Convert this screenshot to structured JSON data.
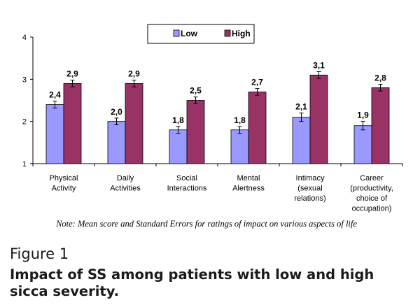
{
  "chart_data": {
    "type": "bar",
    "categories": [
      [
        "Physical",
        "Activity"
      ],
      [
        "Daily",
        "Activities"
      ],
      [
        "Social",
        "Interactions"
      ],
      [
        "Mental",
        "Alertness"
      ],
      [
        "Intimacy",
        "(sexual",
        "relations)"
      ],
      [
        "Career",
        "(productivity,",
        "choice of",
        "occupation)"
      ]
    ],
    "series": [
      {
        "name": "Low",
        "color": "#9999ff",
        "values": [
          2.4,
          2.0,
          1.8,
          1.8,
          2.1,
          1.9
        ],
        "errors": [
          0.08,
          0.08,
          0.08,
          0.08,
          0.1,
          0.1
        ],
        "labels": [
          "2,4",
          "2,0",
          "1,8",
          "1,8",
          "2,1",
          "1,9"
        ]
      },
      {
        "name": "High",
        "color": "#993366",
        "values": [
          2.9,
          2.9,
          2.5,
          2.7,
          3.1,
          2.8
        ],
        "errors": [
          0.08,
          0.08,
          0.08,
          0.08,
          0.08,
          0.08
        ],
        "labels": [
          "2,9",
          "2,9",
          "2,5",
          "2,7",
          "3,1",
          "2,8"
        ]
      }
    ],
    "ylim": [
      1,
      4
    ],
    "yticks": [
      1,
      2,
      3,
      4
    ],
    "legend_position": "top-center",
    "grid": false
  },
  "note": "Note: Mean score and Standard Errors for ratings of impact on various aspects of life",
  "figure_label": "Figure 1",
  "figure_title": "Impact of SS among patients with low and high sicca severity."
}
